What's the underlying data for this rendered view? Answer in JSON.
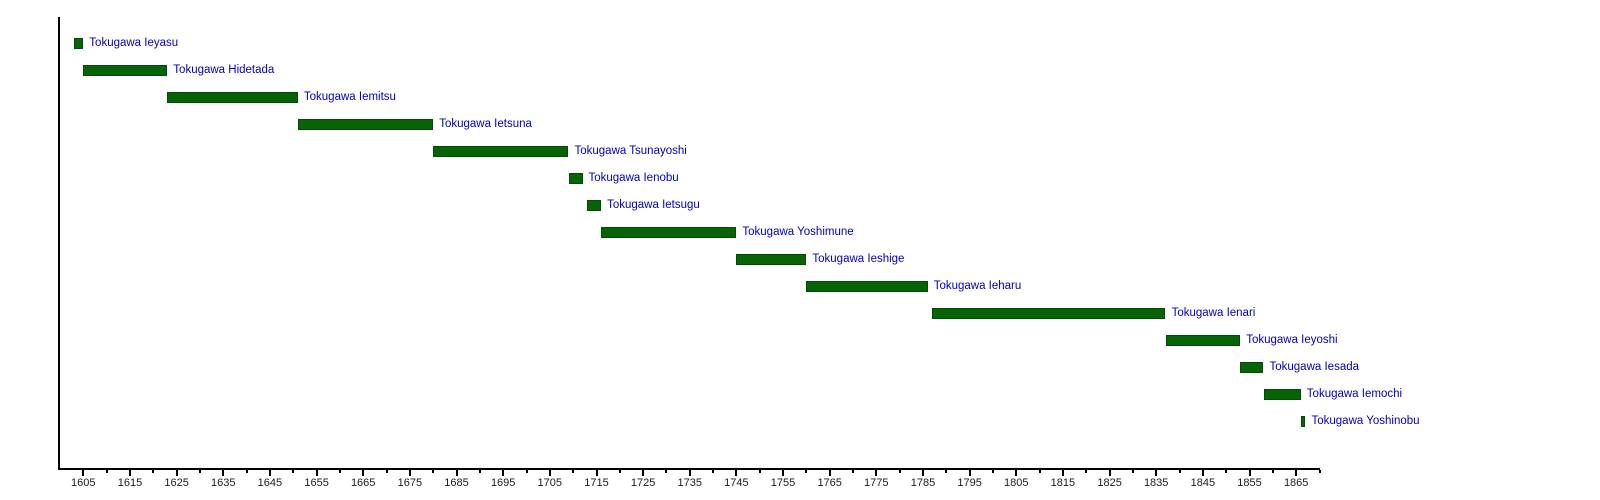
{
  "chart_data": {
    "type": "bar",
    "variant": "horizontal-timeline-gantt",
    "title": "",
    "xlabel": "",
    "ylabel": "",
    "grid": false,
    "legend": "none",
    "xlim": [
      1600,
      1870
    ],
    "rows": [
      {
        "label": "Tokugawa Ieyasu",
        "start": 1603,
        "end": 1605
      },
      {
        "label": "Tokugawa Hidetada",
        "start": 1605,
        "end": 1623
      },
      {
        "label": "Tokugawa Iemitsu",
        "start": 1623,
        "end": 1651
      },
      {
        "label": "Tokugawa Ietsuna",
        "start": 1651,
        "end": 1680
      },
      {
        "label": "Tokugawa Tsunayoshi",
        "start": 1680,
        "end": 1709
      },
      {
        "label": "Tokugawa Ienobu",
        "start": 1709,
        "end": 1712
      },
      {
        "label": "Tokugawa Ietsugu",
        "start": 1713,
        "end": 1716
      },
      {
        "label": "Tokugawa Yoshimune",
        "start": 1716,
        "end": 1745
      },
      {
        "label": "Tokugawa Ieshige",
        "start": 1745,
        "end": 1760
      },
      {
        "label": "Tokugawa Ieharu",
        "start": 1760,
        "end": 1786
      },
      {
        "label": "Tokugawa Ienari",
        "start": 1787,
        "end": 1837
      },
      {
        "label": "Tokugawa Ieyoshi",
        "start": 1837,
        "end": 1853
      },
      {
        "label": "Tokugawa Iesada",
        "start": 1853,
        "end": 1858
      },
      {
        "label": "Tokugawa Iemochi",
        "start": 1858,
        "end": 1866
      },
      {
        "label": "Tokugawa Yoshinobu",
        "start": 1866,
        "end": 1867
      }
    ],
    "axis": {
      "min": 1600,
      "max": 1870,
      "minor_tick_step": 5,
      "major_tick_step": 10,
      "first_tick": 1605,
      "last_tick": 1870,
      "tick_labels": [
        "1605",
        "1615",
        "1625",
        "1635",
        "1645",
        "1655",
        "1665",
        "1675",
        "1685",
        "1695",
        "1705",
        "1715",
        "1725",
        "1735",
        "1745",
        "1755",
        "1765",
        "1775",
        "1785",
        "1795",
        "1805",
        "1815",
        "1825",
        "1835",
        "1845",
        "1855",
        "1865"
      ]
    },
    "colors": {
      "bar_fill": "#066406",
      "bar_border": "#034a03",
      "row_label": "#0000bf",
      "axis": "#000000",
      "tick_label": "#1b1b1b",
      "background": "#ffffff"
    }
  }
}
